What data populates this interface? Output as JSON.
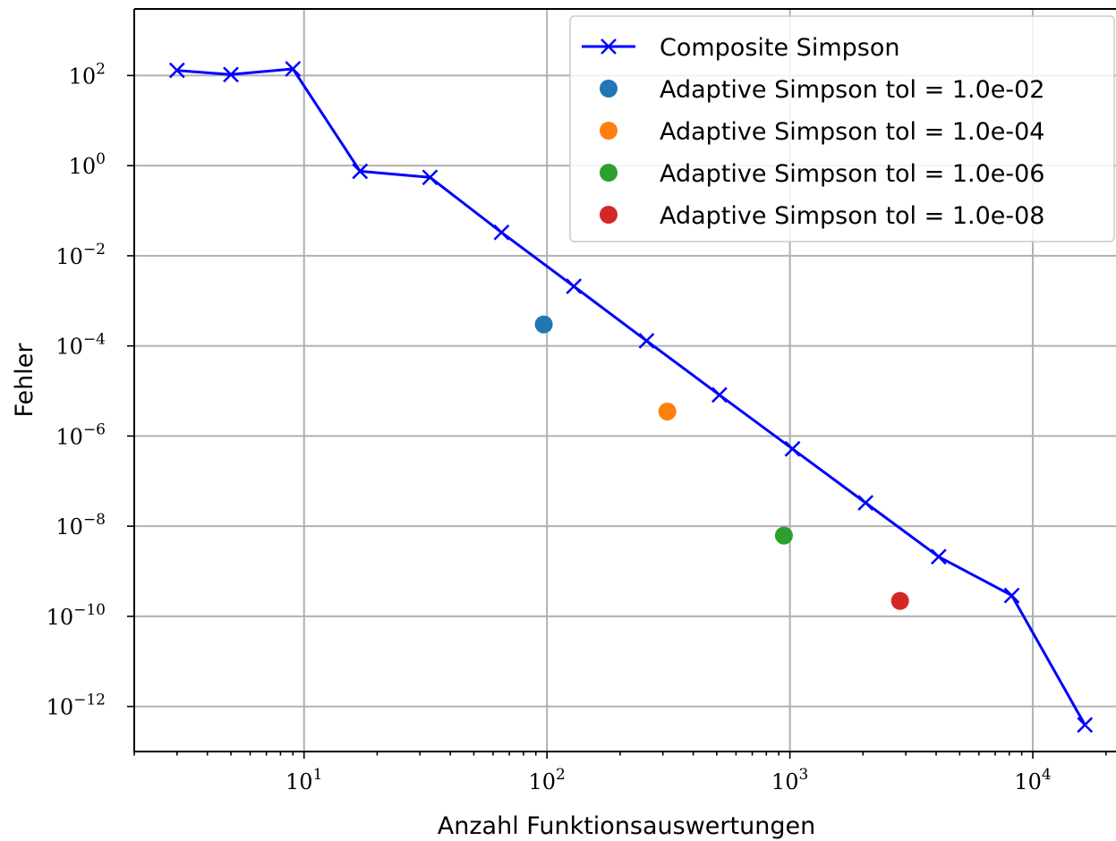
{
  "chart_data": {
    "type": "line",
    "title": "",
    "xlabel": "Anzahl Funktionsauswertungen",
    "ylabel": "Fehler",
    "xscale": "log",
    "yscale": "log",
    "xlim": [
      2.0,
      22000
    ],
    "ylim": [
      1e-13,
      3000.0
    ],
    "grid": true,
    "legend_position": "top-right",
    "x_ticks": [
      {
        "value": 10,
        "base": "10",
        "exp": "1"
      },
      {
        "value": 100,
        "base": "10",
        "exp": "2"
      },
      {
        "value": 1000,
        "base": "10",
        "exp": "3"
      },
      {
        "value": 10000,
        "base": "10",
        "exp": "4"
      }
    ],
    "y_ticks": [
      {
        "value": 100.0,
        "base": "10",
        "exp": "2"
      },
      {
        "value": 1.0,
        "base": "10",
        "exp": "0"
      },
      {
        "value": 0.01,
        "base": "10",
        "exp": "−2"
      },
      {
        "value": 0.0001,
        "base": "10",
        "exp": "−4"
      },
      {
        "value": 1e-06,
        "base": "10",
        "exp": "−6"
      },
      {
        "value": 1e-08,
        "base": "10",
        "exp": "−8"
      },
      {
        "value": 1e-10,
        "base": "10",
        "exp": "−10"
      },
      {
        "value": 1e-12,
        "base": "10",
        "exp": "−12"
      }
    ],
    "series": [
      {
        "name": "Composite Simpson",
        "kind": "line",
        "marker": "x",
        "color": "#0000ff",
        "x": [
          3,
          5,
          9,
          17,
          33,
          65,
          129,
          257,
          513,
          1025,
          2049,
          4097,
          8193,
          16385
        ],
        "y": [
          130,
          105,
          140,
          0.75,
          0.55,
          0.033,
          0.0021,
          0.00013,
          8.2e-06,
          5.2e-07,
          3.3e-08,
          2.1e-09,
          2.9e-10,
          3.9e-13
        ]
      },
      {
        "name": "Adaptive Simpson tol = 1.0e-02",
        "kind": "point",
        "color": "#1f77b4",
        "x": [
          97
        ],
        "y": [
          0.0003
        ]
      },
      {
        "name": "Adaptive Simpson tol = 1.0e-04",
        "kind": "point",
        "color": "#ff7f0e",
        "x": [
          313
        ],
        "y": [
          3.5e-06
        ]
      },
      {
        "name": "Adaptive Simpson tol = 1.0e-06",
        "kind": "point",
        "color": "#2ca02c",
        "x": [
          945
        ],
        "y": [
          6.2e-09
        ]
      },
      {
        "name": "Adaptive Simpson tol = 1.0e-08",
        "kind": "point",
        "color": "#d62728",
        "x": [
          2841
        ],
        "y": [
          2.2e-10
        ]
      }
    ]
  }
}
